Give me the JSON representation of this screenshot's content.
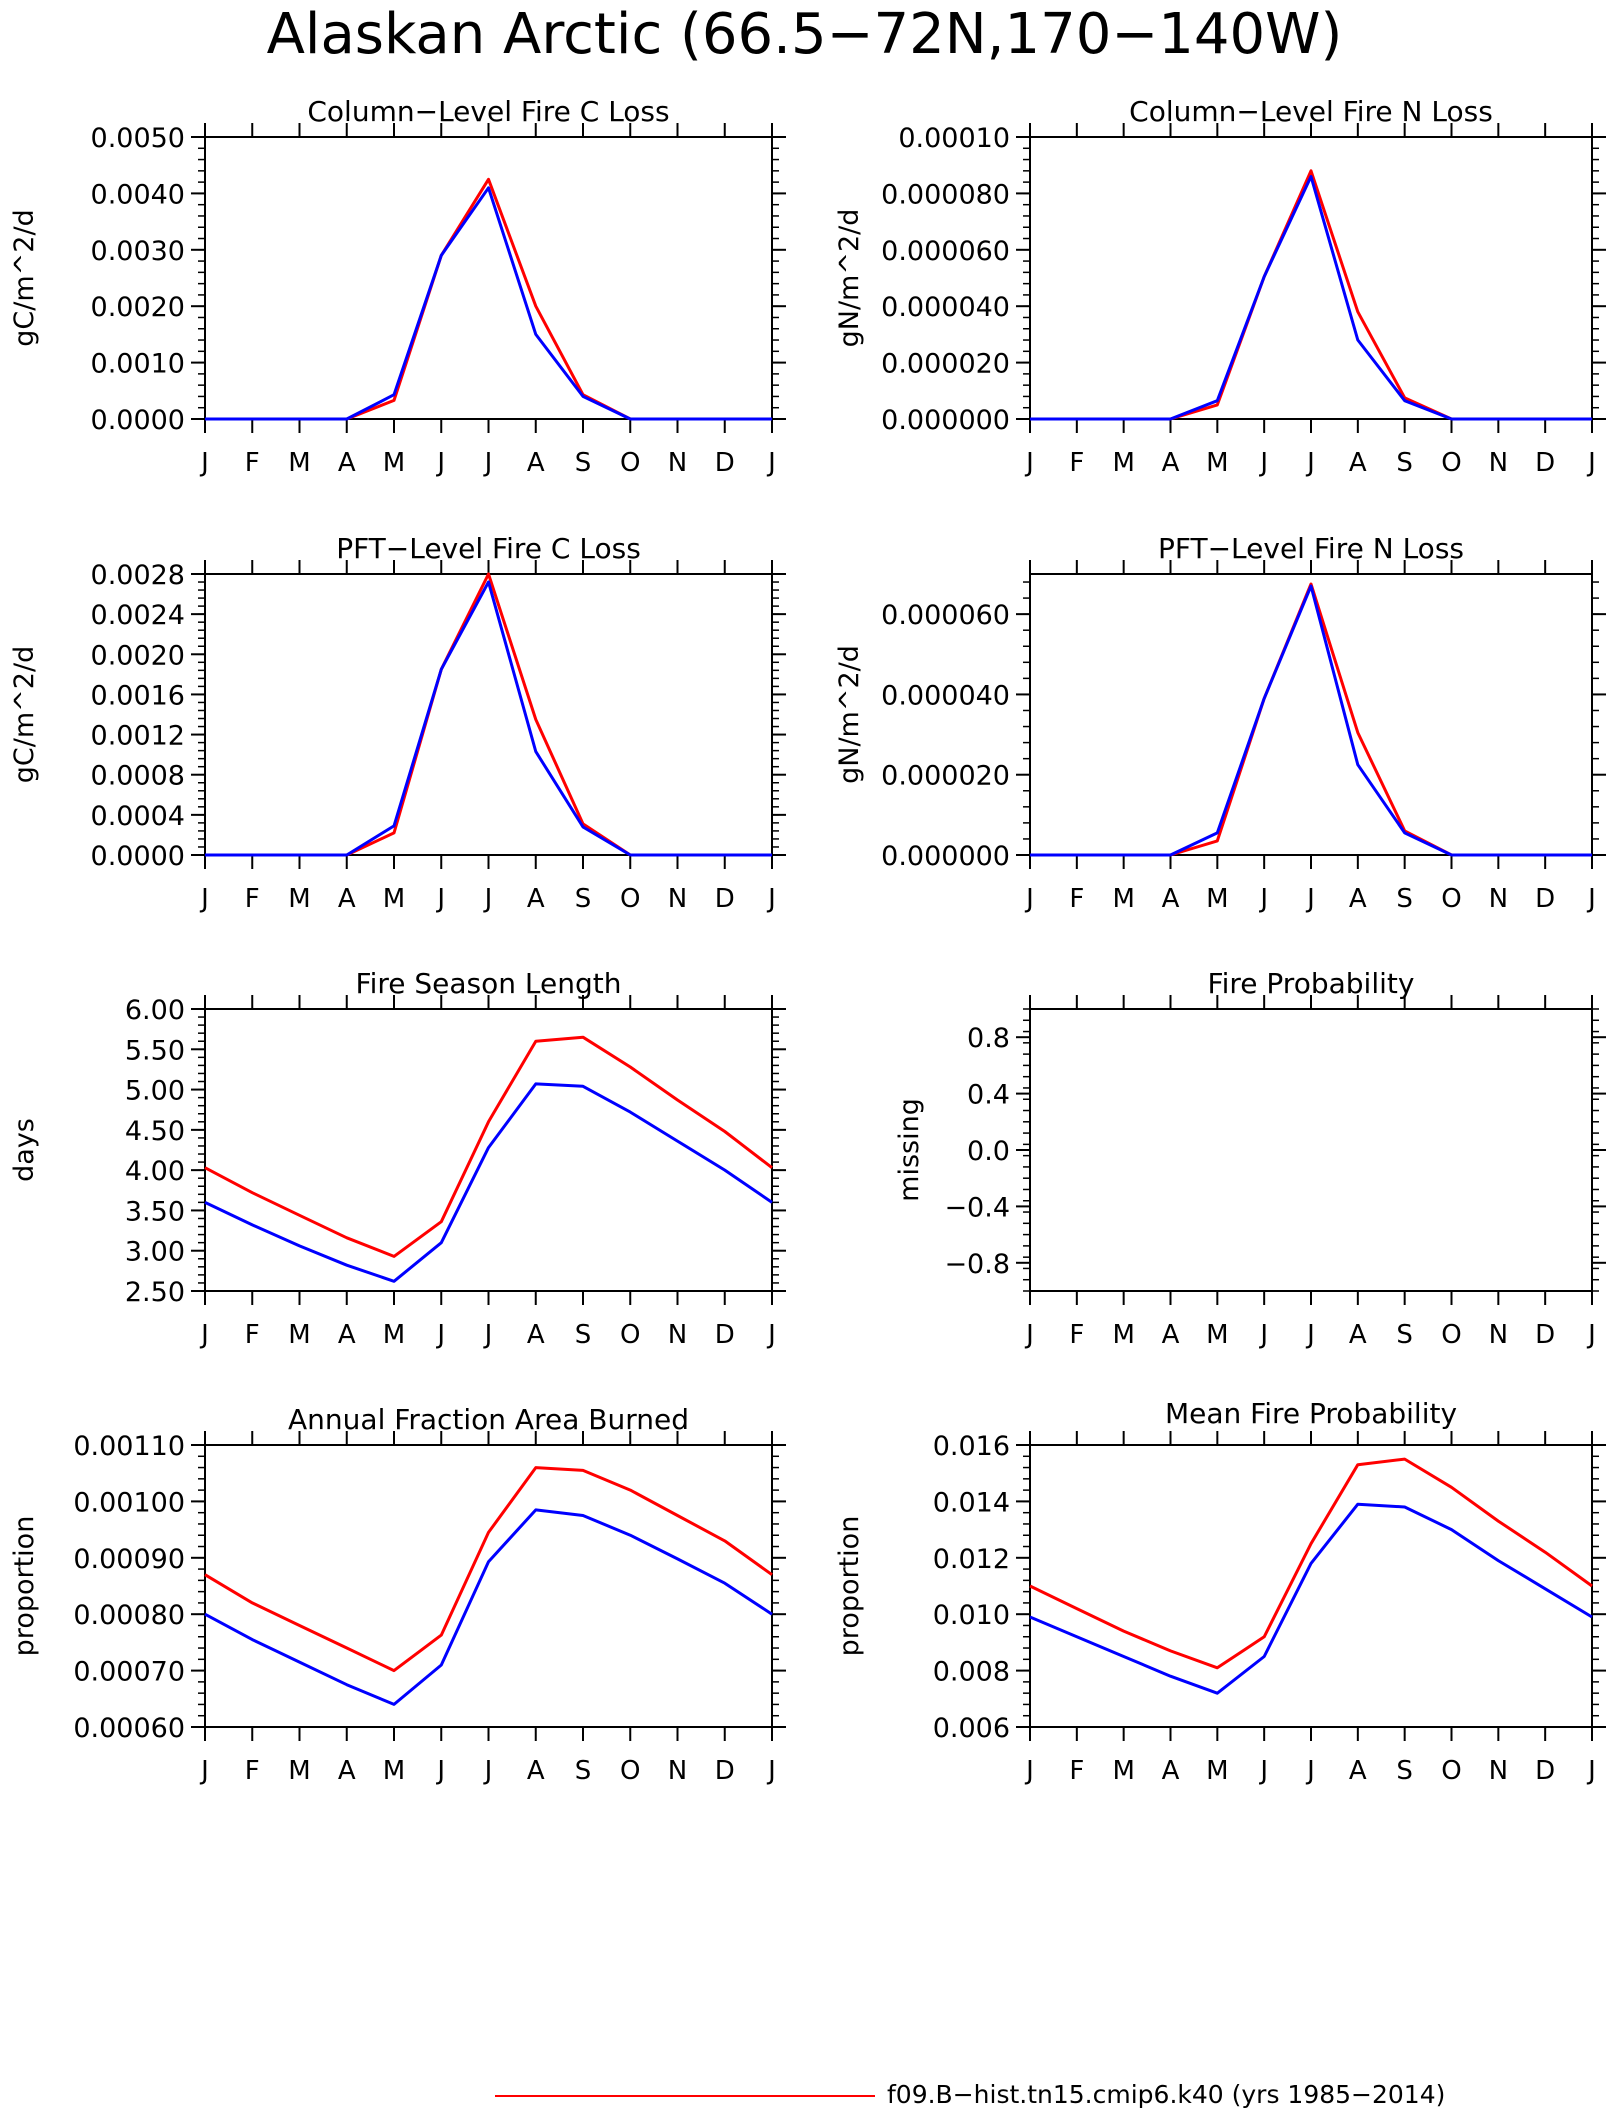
{
  "title": "Alaskan Arctic (66.5−72N,170−140W)",
  "legend": {
    "series_label": "f09.B−hist.tn15.cmip6.k40 (yrs 1985−2014)",
    "color": "#ff0000"
  },
  "colors": {
    "series_1": "#ff0000",
    "series_2": "#0000ff"
  },
  "chart_data": [
    {
      "type": "line",
      "title": "Column−Level Fire C Loss",
      "ylabel": "gC/m^2/d",
      "categories": [
        "J",
        "F",
        "M",
        "A",
        "M",
        "J",
        "J",
        "A",
        "S",
        "O",
        "N",
        "D",
        "J"
      ],
      "ylim": [
        0,
        0.005
      ],
      "yticks": [
        0,
        0.001,
        0.002,
        0.003,
        0.004,
        0.005
      ],
      "ytick_labels": [
        "0.0000",
        "0.0010",
        "0.0020",
        "0.0030",
        "0.0040",
        "0.0050"
      ],
      "series": [
        {
          "color": "#ff0000",
          "values": [
            0,
            0,
            0,
            0,
            0.00033,
            0.0029,
            0.00425,
            0.002,
            0.00043,
            0,
            0,
            0,
            0
          ]
        },
        {
          "color": "#0000ff",
          "values": [
            0,
            0,
            0,
            0,
            0.00043,
            0.0029,
            0.0041,
            0.0015,
            0.0004,
            0,
            0,
            0,
            0
          ]
        }
      ]
    },
    {
      "type": "line",
      "title": "Column−Level Fire N Loss",
      "ylabel": "gN/m^2/d",
      "categories": [
        "J",
        "F",
        "M",
        "A",
        "M",
        "J",
        "J",
        "A",
        "S",
        "O",
        "N",
        "D",
        "J"
      ],
      "ylim": [
        0,
        0.0001
      ],
      "yticks": [
        0,
        2e-05,
        4e-05,
        6e-05,
        8e-05,
        0.0001
      ],
      "ytick_labels": [
        "0.000000",
        "0.000020",
        "0.000040",
        "0.000060",
        "0.000080",
        "0.00010"
      ],
      "series": [
        {
          "color": "#ff0000",
          "values": [
            0,
            0,
            0,
            0,
            5e-06,
            5.05e-05,
            8.8e-05,
            3.8e-05,
            7.5e-06,
            0,
            0,
            0,
            0
          ]
        },
        {
          "color": "#0000ff",
          "values": [
            0,
            0,
            0,
            0,
            6.5e-06,
            5.05e-05,
            8.6e-05,
            2.8e-05,
            6.5e-06,
            0,
            0,
            0,
            0
          ]
        }
      ]
    },
    {
      "type": "line",
      "title": "PFT−Level Fire C Loss",
      "ylabel": "gC/m^2/d",
      "categories": [
        "J",
        "F",
        "M",
        "A",
        "M",
        "J",
        "J",
        "A",
        "S",
        "O",
        "N",
        "D",
        "J"
      ],
      "ylim": [
        0,
        0.0028
      ],
      "yticks": [
        0,
        0.0004,
        0.0008,
        0.0012,
        0.0016,
        0.002,
        0.0024,
        0.0028
      ],
      "ytick_labels": [
        "0.0000",
        "0.0004",
        "0.0008",
        "0.0012",
        "0.0016",
        "0.0020",
        "0.0024",
        "0.0028"
      ],
      "series": [
        {
          "color": "#ff0000",
          "values": [
            0,
            0,
            0,
            0,
            0.00022,
            0.00185,
            0.0028,
            0.00135,
            0.00031,
            0,
            0,
            0,
            0
          ]
        },
        {
          "color": "#0000ff",
          "values": [
            0,
            0,
            0,
            0,
            0.00029,
            0.00185,
            0.00272,
            0.00103,
            0.00028,
            0,
            0,
            0,
            0
          ]
        }
      ]
    },
    {
      "type": "line",
      "title": "PFT−Level Fire N Loss",
      "ylabel": "gN/m^2/d",
      "categories": [
        "J",
        "F",
        "M",
        "A",
        "M",
        "J",
        "J",
        "A",
        "S",
        "O",
        "N",
        "D",
        "J"
      ],
      "ylim": [
        0,
        7e-05
      ],
      "yticks": [
        0,
        2e-05,
        4e-05,
        6e-05
      ],
      "ytick_labels": [
        "0.000000",
        "0.000020",
        "0.000040",
        "0.000060"
      ],
      "series": [
        {
          "color": "#ff0000",
          "values": [
            0,
            0,
            0,
            0,
            3.5e-06,
            3.9e-05,
            6.75e-05,
            3.05e-05,
            6e-06,
            0,
            0,
            0,
            0
          ]
        },
        {
          "color": "#0000ff",
          "values": [
            0,
            0,
            0,
            0,
            5.5e-06,
            3.9e-05,
            6.7e-05,
            2.25e-05,
            5.5e-06,
            0,
            0,
            0,
            0
          ]
        }
      ]
    },
    {
      "type": "line",
      "title": "Fire Season Length",
      "ylabel": "days",
      "categories": [
        "J",
        "F",
        "M",
        "A",
        "M",
        "J",
        "J",
        "A",
        "S",
        "O",
        "N",
        "D",
        "J"
      ],
      "ylim": [
        2.5,
        6.0
      ],
      "yticks": [
        2.5,
        3.0,
        3.5,
        4.0,
        4.5,
        5.0,
        5.5,
        6.0
      ],
      "ytick_labels": [
        "2.50",
        "3.00",
        "3.50",
        "4.00",
        "4.50",
        "5.00",
        "5.50",
        "6.00"
      ],
      "series": [
        {
          "color": "#ff0000",
          "values": [
            4.03,
            3.72,
            3.44,
            3.16,
            2.93,
            3.36,
            4.6,
            5.6,
            5.65,
            5.28,
            4.87,
            4.48,
            4.03
          ]
        },
        {
          "color": "#0000ff",
          "values": [
            3.6,
            3.32,
            3.06,
            2.82,
            2.62,
            3.1,
            4.28,
            5.07,
            5.04,
            4.72,
            4.36,
            4.0,
            3.6
          ]
        }
      ]
    },
    {
      "type": "line",
      "title": "Fire Probability",
      "ylabel": "missing",
      "categories": [
        "J",
        "F",
        "M",
        "A",
        "M",
        "J",
        "J",
        "A",
        "S",
        "O",
        "N",
        "D",
        "J"
      ],
      "ylim": [
        -1.0,
        1.0
      ],
      "yticks": [
        -0.8,
        -0.4,
        0.0,
        0.4,
        0.8
      ],
      "ytick_labels": [
        "−0.8",
        "−0.4",
        "0.0",
        "0.4",
        "0.8"
      ],
      "series": []
    },
    {
      "type": "line",
      "title": "Annual Fraction Area Burned",
      "ylabel": "proportion",
      "categories": [
        "J",
        "F",
        "M",
        "A",
        "M",
        "J",
        "J",
        "A",
        "S",
        "O",
        "N",
        "D",
        "J"
      ],
      "ylim": [
        0.0006,
        0.0011
      ],
      "yticks": [
        0.0006,
        0.0007,
        0.0008,
        0.0009,
        0.001,
        0.0011
      ],
      "ytick_labels": [
        "0.00060",
        "0.00070",
        "0.00080",
        "0.00090",
        "0.00100",
        "0.00110"
      ],
      "series": [
        {
          "color": "#ff0000",
          "values": [
            0.00087,
            0.00082,
            0.00078,
            0.00074,
            0.0007,
            0.000763,
            0.000945,
            0.00106,
            0.001055,
            0.00102,
            0.000975,
            0.00093,
            0.00087
          ]
        },
        {
          "color": "#0000ff",
          "values": [
            0.0008,
            0.000755,
            0.000715,
            0.000675,
            0.00064,
            0.00071,
            0.000893,
            0.000985,
            0.000975,
            0.00094,
            0.000898,
            0.000855,
            0.0008
          ]
        }
      ]
    },
    {
      "type": "line",
      "title": "Mean Fire Probability",
      "ylabel": "proportion",
      "categories": [
        "J",
        "F",
        "M",
        "A",
        "M",
        "J",
        "J",
        "A",
        "S",
        "O",
        "N",
        "D",
        "J"
      ],
      "ylim": [
        0.006,
        0.016
      ],
      "yticks": [
        0.006,
        0.008,
        0.01,
        0.012,
        0.014,
        0.016
      ],
      "ytick_labels": [
        "0.006",
        "0.008",
        "0.010",
        "0.012",
        "0.014",
        "0.016"
      ],
      "series": [
        {
          "color": "#ff0000",
          "values": [
            0.011,
            0.0102,
            0.0094,
            0.0087,
            0.0081,
            0.0092,
            0.0125,
            0.0153,
            0.0155,
            0.0145,
            0.0133,
            0.0122,
            0.011
          ]
        },
        {
          "color": "#0000ff",
          "values": [
            0.0099,
            0.0092,
            0.0085,
            0.0078,
            0.0072,
            0.0085,
            0.0118,
            0.0139,
            0.0138,
            0.013,
            0.0119,
            0.0109,
            0.0099
          ]
        }
      ]
    }
  ]
}
